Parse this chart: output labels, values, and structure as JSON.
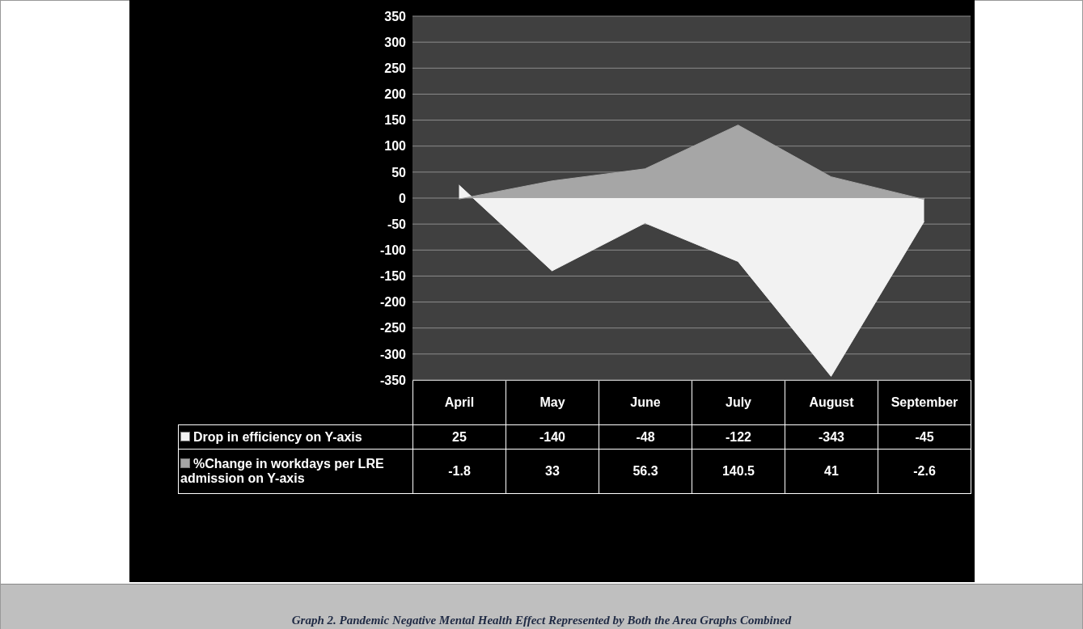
{
  "chart_data": {
    "type": "area",
    "categories": [
      "April",
      "May",
      "June",
      "July",
      "August",
      "September"
    ],
    "series": [
      {
        "name": "Drop in efficiency on Y-axis",
        "color": "#f2f2f2",
        "values": [
          25,
          -140,
          -48,
          -122,
          -343,
          -45
        ]
      },
      {
        "name": "%Change in workdays per LRE admission on Y-axis",
        "color": "#a6a6a6",
        "values": [
          -1.8,
          33,
          56.3,
          140.5,
          41,
          -2.6
        ]
      }
    ],
    "ylim": [
      -350,
      350
    ],
    "yticks": [
      -350,
      -300,
      -250,
      -200,
      -150,
      -100,
      -50,
      0,
      50,
      100,
      150,
      200,
      250,
      300,
      350
    ],
    "grid": "y",
    "legend": "bottom",
    "data_labels": true,
    "annotations": [
      "Graph 2. Pandemic Negative Mental Health Effect Represented by Both the Area Graphs Combined"
    ]
  }
}
